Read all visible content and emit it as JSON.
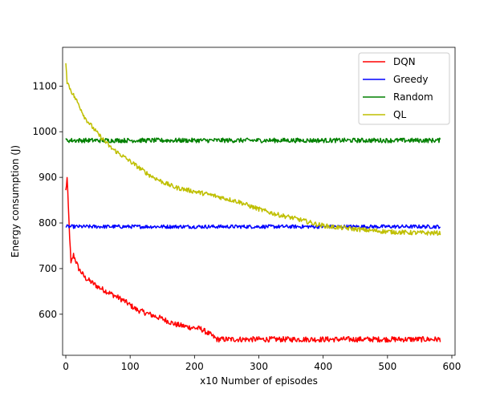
{
  "chart_data": {
    "type": "line",
    "title": "",
    "xlabel": "x10 Number of episodes",
    "ylabel": "Energy consumption (J)",
    "xlim": [
      -5,
      605
    ],
    "ylim": [
      510,
      1185
    ],
    "xticks": [
      0,
      100,
      200,
      300,
      400,
      500,
      600
    ],
    "yticks": [
      600,
      700,
      800,
      900,
      1000,
      1100
    ],
    "grid": false,
    "legend_position": "top-right",
    "series": [
      {
        "name": "DQN",
        "color": "#ff0000",
        "noise": 6,
        "x": [
          0,
          2,
          5,
          8,
          12,
          20,
          30,
          50,
          70,
          90,
          110,
          130,
          150,
          170,
          190,
          210,
          225,
          235,
          260,
          300,
          400,
          500,
          582
        ],
        "y": [
          870,
          898,
          800,
          710,
          730,
          700,
          680,
          660,
          645,
          630,
          610,
          600,
          590,
          578,
          572,
          568,
          555,
          545,
          545,
          545,
          545,
          545,
          545
        ]
      },
      {
        "name": "Greedy",
        "color": "#0000ff",
        "noise": 4,
        "x": [
          0,
          100,
          200,
          300,
          400,
          500,
          582
        ],
        "y": [
          792,
          792,
          792,
          792,
          792,
          792,
          792
        ]
      },
      {
        "name": "Random",
        "color": "#008000",
        "noise": 5,
        "x": [
          0,
          100,
          200,
          300,
          400,
          500,
          582
        ],
        "y": [
          981,
          981,
          981,
          981,
          981,
          981,
          981
        ]
      },
      {
        "name": "QL",
        "color": "#bfbf00",
        "noise": 5,
        "x": [
          0,
          2,
          5,
          10,
          20,
          30,
          50,
          70,
          90,
          110,
          130,
          150,
          170,
          190,
          210,
          230,
          250,
          270,
          290,
          310,
          330,
          350,
          370,
          390,
          410,
          440,
          470,
          500,
          530,
          560,
          582
        ],
        "y": [
          1155,
          1110,
          1100,
          1085,
          1060,
          1030,
          995,
          965,
          945,
          925,
          905,
          890,
          878,
          872,
          866,
          860,
          853,
          846,
          835,
          826,
          818,
          812,
          805,
          797,
          792,
          788,
          784,
          781,
          779,
          778,
          778
        ]
      }
    ]
  }
}
